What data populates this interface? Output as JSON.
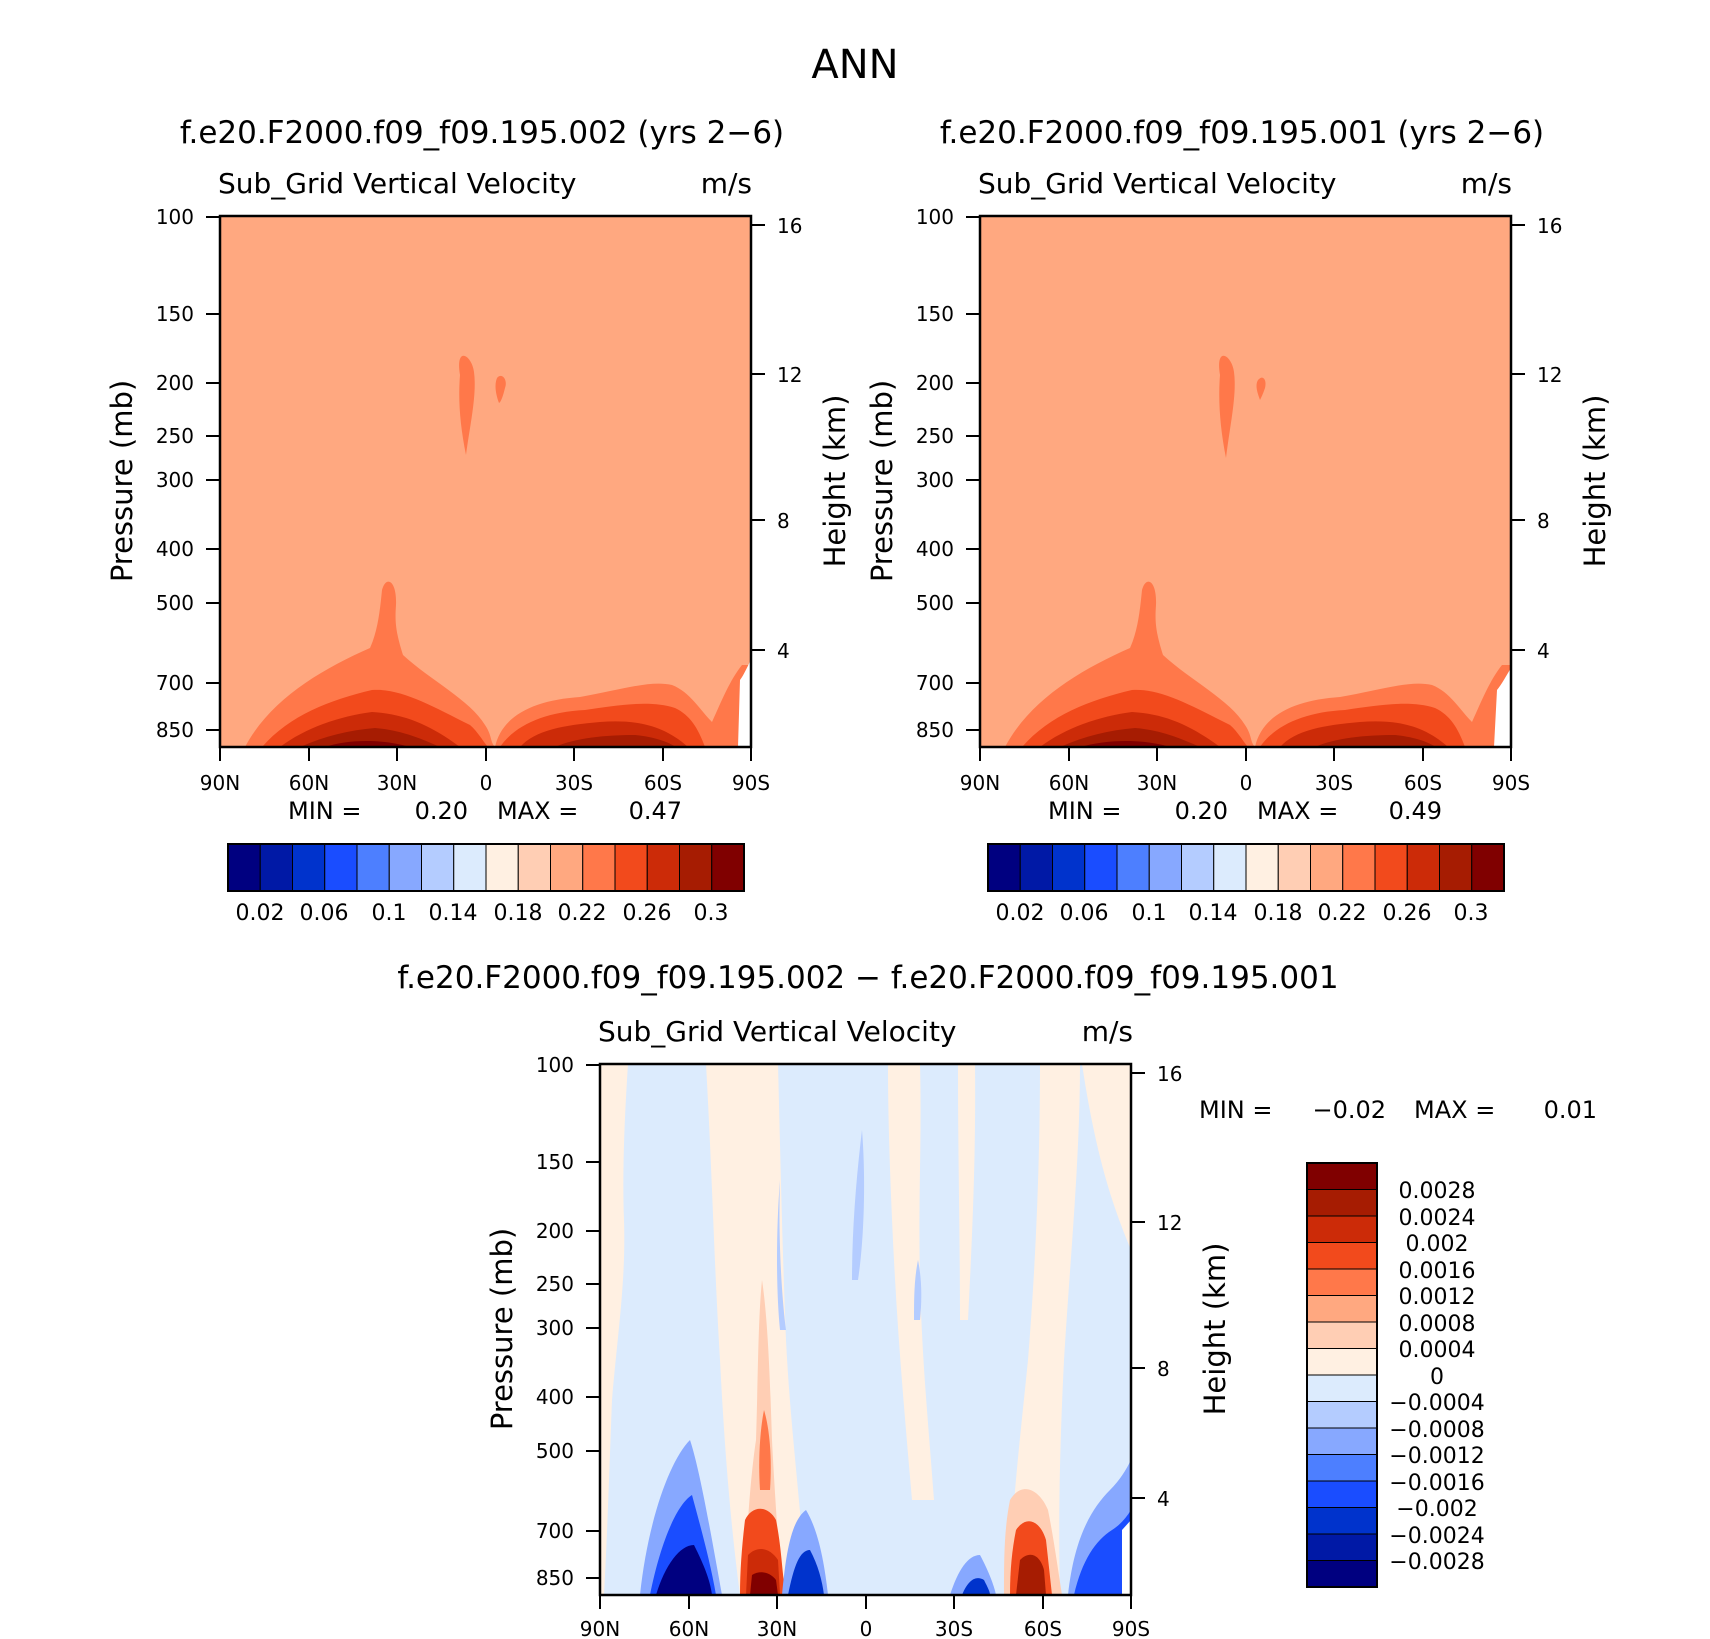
{
  "page_title": "ANN",
  "chart_data": [
    {
      "type": "contour",
      "title": "f.e20.F2000.f09_f09.195.002 (yrs 2−6)",
      "variable": "Sub_Grid Vertical Velocity",
      "units": "m/s",
      "ylabel": "Pressure (mb)",
      "ylabel_right": "Height (km)",
      "x_ticks": [
        "90N",
        "60N",
        "30N",
        "0",
        "30S",
        "60S",
        "90S"
      ],
      "y_ticks": [
        "100",
        "150",
        "200",
        "250",
        "300",
        "400",
        "500",
        "700",
        "850"
      ],
      "y_ticks_right": [
        "16",
        "12",
        "8",
        "4"
      ],
      "min_label": "MIN =",
      "min_value": "0.20",
      "max_label": "MAX =",
      "max_value": "0.47",
      "colorbar_labels": [
        "0.02",
        "0.06",
        "0.1",
        "0.14",
        "0.18",
        "0.22",
        "0.26",
        "0.3"
      ]
    },
    {
      "type": "contour",
      "title": "f.e20.F2000.f09_f09.195.001 (yrs 2−6)",
      "variable": "Sub_Grid Vertical Velocity",
      "units": "m/s",
      "ylabel": "Pressure (mb)",
      "ylabel_right": "Height (km)",
      "x_ticks": [
        "90N",
        "60N",
        "30N",
        "0",
        "30S",
        "60S",
        "90S"
      ],
      "y_ticks": [
        "100",
        "150",
        "200",
        "250",
        "300",
        "400",
        "500",
        "700",
        "850"
      ],
      "y_ticks_right": [
        "16",
        "12",
        "8",
        "4"
      ],
      "min_label": "MIN =",
      "min_value": "0.20",
      "max_label": "MAX =",
      "max_value": "0.49",
      "colorbar_labels": [
        "0.02",
        "0.06",
        "0.1",
        "0.14",
        "0.18",
        "0.22",
        "0.26",
        "0.3"
      ]
    },
    {
      "type": "contour",
      "title": "f.e20.F2000.f09_f09.195.002 − f.e20.F2000.f09_f09.195.001",
      "variable": "Sub_Grid Vertical Velocity",
      "units": "m/s",
      "ylabel": "Pressure (mb)",
      "ylabel_right": "Height (km)",
      "x_ticks": [
        "90N",
        "60N",
        "30N",
        "0",
        "30S",
        "60S",
        "90S"
      ],
      "y_ticks": [
        "100",
        "150",
        "200",
        "250",
        "300",
        "400",
        "500",
        "700",
        "850"
      ],
      "y_ticks_right": [
        "16",
        "12",
        "8",
        "4"
      ],
      "min_label": "MIN =",
      "min_value": "−0.02",
      "max_label": "MAX =",
      "max_value": "0.01",
      "colorbar_labels": [
        "0.0028",
        "0.0024",
        "0.002",
        "0.0016",
        "0.0012",
        "0.0008",
        "0.0004",
        "0",
        "−0.0004",
        "−0.0008",
        "−0.0012",
        "−0.0016",
        "−0.002",
        "−0.0024",
        "−0.0028"
      ]
    }
  ],
  "colors": {
    "scale": [
      "#000080",
      "#0019a6",
      "#0033cc",
      "#1a4dff",
      "#4d7fff",
      "#87a8ff",
      "#b4ccff",
      "#dcebfd",
      "#fff0e2",
      "#ffceb4",
      "#ffa880",
      "#ff784a",
      "#f24a1c",
      "#cc2b08",
      "#a61c02",
      "#800000"
    ],
    "diff_scale_top_down": [
      "#800000",
      "#a61c02",
      "#cc2b08",
      "#f24a1c",
      "#ff784a",
      "#ffa880",
      "#ffceb4",
      "#fff0e2",
      "#dcebfd",
      "#b4ccff",
      "#87a8ff",
      "#4d7fff",
      "#1a4dff",
      "#0033cc",
      "#0019a6",
      "#000080"
    ]
  }
}
